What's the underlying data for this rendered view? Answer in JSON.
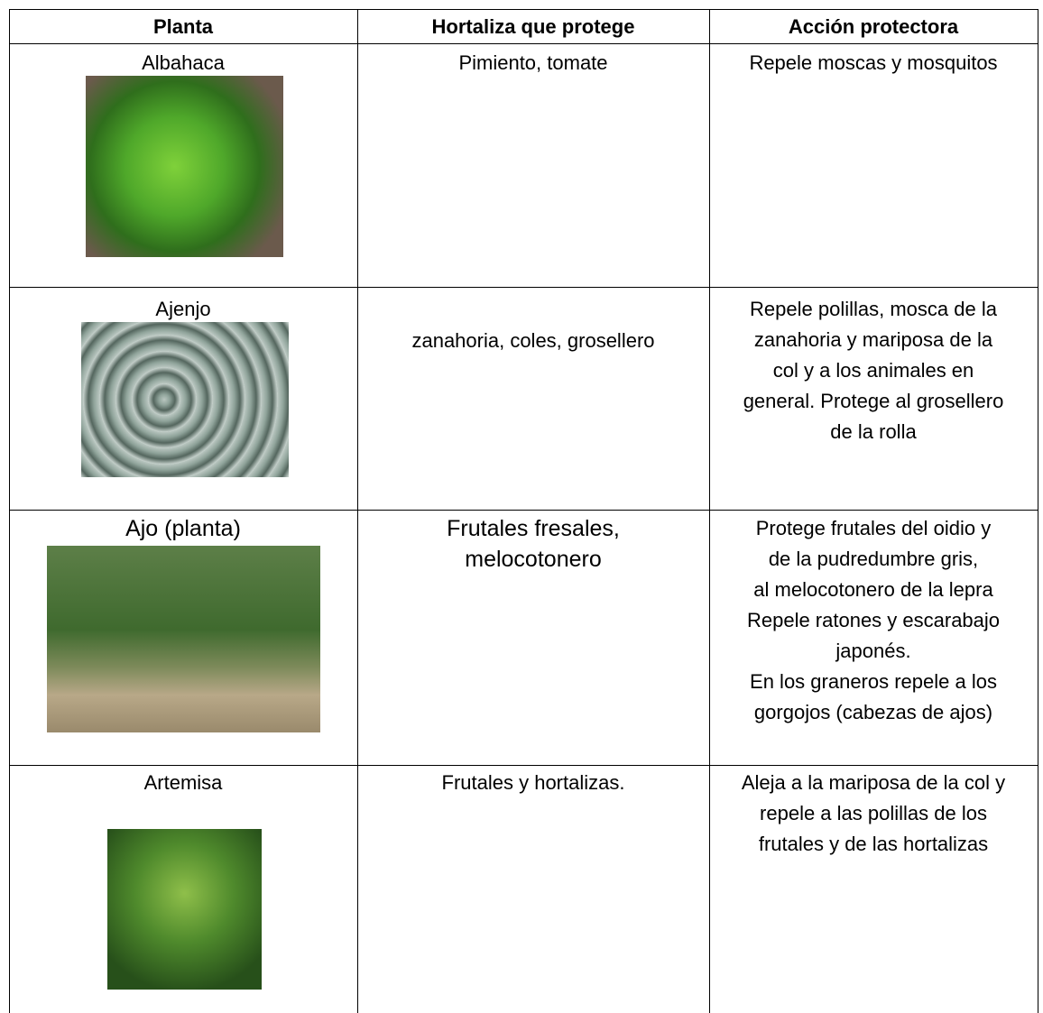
{
  "table": {
    "header": [
      "Planta",
      "Hortaliza que protege",
      "Acción protectora"
    ],
    "rows": [
      [
        [
          "Albahaca"
        ],
        [
          "Pimiento, tomate"
        ],
        [
          "Repele moscas y mosquitos"
        ]
      ],
      [
        [
          "Ajenjo"
        ],
        [
          "zanahoria, coles, grosellero"
        ],
        [
          "Repele polillas, mosca de la",
          "zanahoria y mariposa de la",
          "col y a los animales en",
          "general. Protege al grosellero",
          "de la rolla"
        ]
      ],
      [
        [
          "Ajo (planta)"
        ],
        [
          "Frutales fresales,",
          "melocotonero"
        ],
        [
          "Protege frutales del oidio y",
          "de la pudredumbre gris,",
          "al melocotonero de la lepra",
          "Repele ratones y escarabajo",
          "japonés.",
          "En los graneros repele a los",
          "gorgojos (cabezas de ajos)"
        ]
      ],
      [
        [
          "Artemisa"
        ],
        [
          "Frutales y hortalizas."
        ],
        [
          "Aleja a la mariposa de la col y",
          "repele a las polillas de los",
          "frutales y de las hortalizas"
        ]
      ]
    ]
  }
}
